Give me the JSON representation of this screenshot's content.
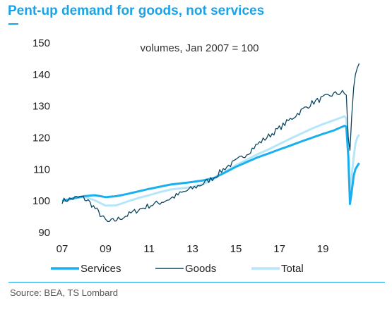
{
  "chart_data": {
    "type": "line",
    "title": "Pent-up demand for goods, not services",
    "subtitle": "volumes, Jan 2007 = 100",
    "source": "Source: BEA, TS Lombard",
    "xlabel": "",
    "ylabel": "",
    "xlim": [
      2007,
      2020.85
    ],
    "ylim": [
      90,
      150
    ],
    "x_ticks": [
      {
        "value": 2007,
        "label": "07"
      },
      {
        "value": 2009,
        "label": "09"
      },
      {
        "value": 2011,
        "label": "11"
      },
      {
        "value": 2013,
        "label": "13"
      },
      {
        "value": 2015,
        "label": "15"
      },
      {
        "value": 2017,
        "label": "17"
      },
      {
        "value": 2019,
        "label": "19"
      }
    ],
    "y_ticks": [
      90,
      100,
      110,
      120,
      130,
      140,
      150
    ],
    "grid": false,
    "legend_position": "bottom",
    "series": [
      {
        "name": "Services",
        "color": "#1ab0f0",
        "width": 3,
        "points": [
          [
            2007,
            100
          ],
          [
            2007.5,
            100.8
          ],
          [
            2008,
            101.5
          ],
          [
            2008.5,
            101.8
          ],
          [
            2009,
            101.2
          ],
          [
            2009.5,
            101.5
          ],
          [
            2010,
            102.2
          ],
          [
            2010.5,
            103
          ],
          [
            2011,
            103.8
          ],
          [
            2011.5,
            104.5
          ],
          [
            2012,
            105.2
          ],
          [
            2012.5,
            105.6
          ],
          [
            2013,
            106
          ],
          [
            2013.5,
            106.5
          ],
          [
            2014,
            107.3
          ],
          [
            2014.5,
            109
          ],
          [
            2015,
            110.8
          ],
          [
            2015.5,
            112.3
          ],
          [
            2016,
            113.8
          ],
          [
            2016.5,
            115
          ],
          [
            2017,
            116.3
          ],
          [
            2017.5,
            117.5
          ],
          [
            2018,
            118.8
          ],
          [
            2018.5,
            120
          ],
          [
            2019,
            121.2
          ],
          [
            2019.5,
            122.3
          ],
          [
            2020,
            123.8
          ],
          [
            2020.08,
            123.5
          ],
          [
            2020.17,
            114
          ],
          [
            2020.25,
            99
          ],
          [
            2020.33,
            103
          ],
          [
            2020.42,
            108
          ],
          [
            2020.5,
            110
          ],
          [
            2020.58,
            111
          ],
          [
            2020.67,
            112
          ]
        ]
      },
      {
        "name": "Goods",
        "color": "#0e4660",
        "width": 1.3,
        "noise": 0.9,
        "points": [
          [
            2007,
            100
          ],
          [
            2007.5,
            100.8
          ],
          [
            2007.9,
            101.2
          ],
          [
            2008.2,
            100
          ],
          [
            2008.6,
            97
          ],
          [
            2008.9,
            94.5
          ],
          [
            2009.1,
            93.2
          ],
          [
            2009.5,
            94
          ],
          [
            2010,
            95.5
          ],
          [
            2010.5,
            97.2
          ],
          [
            2011,
            98.5
          ],
          [
            2011.5,
            99.5
          ],
          [
            2012,
            100.8
          ],
          [
            2012.5,
            102.5
          ],
          [
            2013,
            104
          ],
          [
            2013.5,
            105.5
          ],
          [
            2014,
            107.5
          ],
          [
            2014.5,
            110.5
          ],
          [
            2015,
            112.5
          ],
          [
            2015.5,
            115
          ],
          [
            2016,
            118
          ],
          [
            2016.5,
            120.5
          ],
          [
            2017,
            123
          ],
          [
            2017.5,
            125.8
          ],
          [
            2018,
            128.5
          ],
          [
            2018.5,
            131
          ],
          [
            2019,
            132.5
          ],
          [
            2019.5,
            133.8
          ],
          [
            2019.9,
            134.3
          ],
          [
            2020.08,
            133.5
          ],
          [
            2020.17,
            120
          ],
          [
            2020.25,
            116
          ],
          [
            2020.33,
            127
          ],
          [
            2020.42,
            136
          ],
          [
            2020.5,
            140
          ],
          [
            2020.58,
            142
          ],
          [
            2020.67,
            143.5
          ]
        ]
      },
      {
        "name": "Total",
        "color": "#b5e6fa",
        "width": 3,
        "points": [
          [
            2007,
            100
          ],
          [
            2007.5,
            100.7
          ],
          [
            2008,
            101.3
          ],
          [
            2008.5,
            100.2
          ],
          [
            2009,
            98.5
          ],
          [
            2009.5,
            98.6
          ],
          [
            2010,
            99.8
          ],
          [
            2010.5,
            100.9
          ],
          [
            2011,
            101.8
          ],
          [
            2011.5,
            102.8
          ],
          [
            2012,
            103.6
          ],
          [
            2012.5,
            104
          ],
          [
            2013,
            104.4
          ],
          [
            2013.5,
            105.4
          ],
          [
            2014,
            107
          ],
          [
            2014.5,
            109.3
          ],
          [
            2015,
            111.3
          ],
          [
            2015.5,
            113
          ],
          [
            2016,
            114.8
          ],
          [
            2016.5,
            116.3
          ],
          [
            2017,
            118
          ],
          [
            2017.5,
            119.7
          ],
          [
            2018,
            121.3
          ],
          [
            2018.5,
            122.9
          ],
          [
            2019,
            124.3
          ],
          [
            2019.5,
            125.5
          ],
          [
            2020,
            126.8
          ],
          [
            2020.08,
            126.2
          ],
          [
            2020.17,
            116
          ],
          [
            2020.25,
            101.5
          ],
          [
            2020.33,
            108
          ],
          [
            2020.42,
            114
          ],
          [
            2020.5,
            118
          ],
          [
            2020.58,
            120
          ],
          [
            2020.67,
            121
          ]
        ]
      }
    ]
  }
}
